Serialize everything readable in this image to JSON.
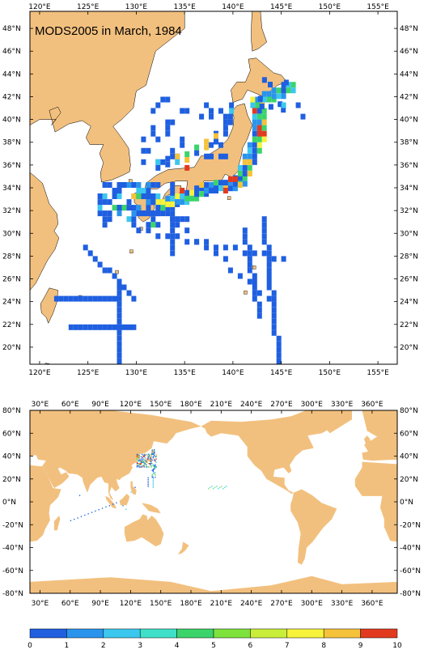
{
  "title": "MODS2005 in March, 1984",
  "colors": {
    "land": "#f2c07e",
    "ocean": "#ffffff",
    "frame": "#000000"
  },
  "top_map": {
    "lon_labels": [
      "120°E",
      "125°E",
      "130°E",
      "135°E",
      "140°E",
      "145°E",
      "150°E",
      "155°E"
    ],
    "lat_labels": [
      "48°N",
      "46°N",
      "44°N",
      "42°N",
      "40°N",
      "38°N",
      "36°N",
      "34°N",
      "32°N",
      "30°N",
      "28°N",
      "26°N",
      "24°N",
      "22°N",
      "20°N"
    ],
    "lon_range": [
      119.0,
      157.0
    ],
    "lat_range": [
      18.5,
      49.5
    ]
  },
  "bottom_map": {
    "lon_labels": [
      "30°E",
      "60°E",
      "90°E",
      "120°E",
      "150°E",
      "180°E",
      "210°E",
      "240°E",
      "270°E",
      "300°E",
      "330°E",
      "360°E"
    ],
    "lat_labels": [
      "80°N",
      "60°N",
      "40°N",
      "20°N",
      "0°N",
      "-20°N",
      "-40°N",
      "-60°N",
      "-80°N"
    ],
    "lon_range": [
      20.0,
      385.0
    ],
    "lat_range": [
      -80.0,
      80.0
    ]
  },
  "colorbar": {
    "labels": [
      "0",
      "1",
      "2",
      "3",
      "4",
      "5",
      "6",
      "7",
      "8",
      "9",
      "10"
    ],
    "colors": [
      "#1f5fe0",
      "#2a94ec",
      "#3cc7ee",
      "#40e0c8",
      "#3bd46a",
      "#7ee23c",
      "#c9ee3a",
      "#f7f23c",
      "#f5c23a",
      "#ef7a2a",
      "#e23a1e"
    ]
  },
  "legend_icon": "color-scale"
}
